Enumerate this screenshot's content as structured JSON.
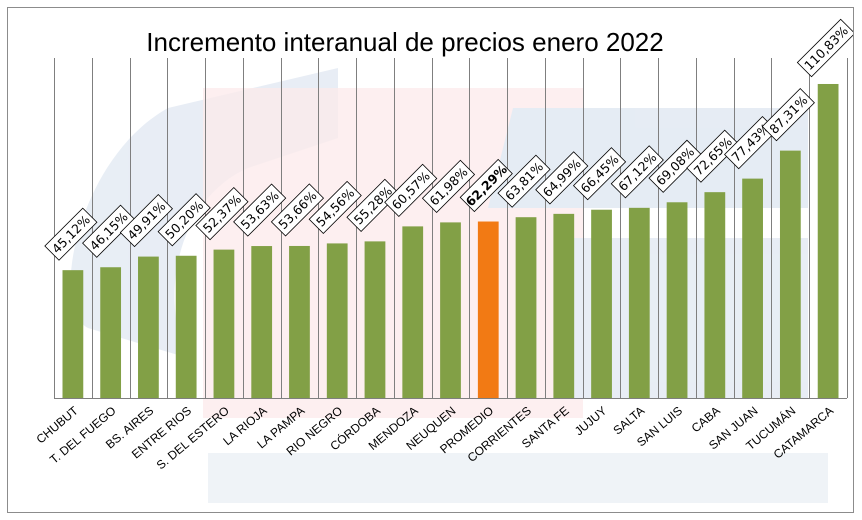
{
  "chart_data": {
    "type": "bar",
    "title": "Incremento interanual de precios enero 2022",
    "xlabel": "",
    "ylabel": "",
    "ylim": [
      0,
      120
    ],
    "grid": "vertical",
    "legend": "none",
    "categories": [
      "CHUBUT",
      "T. DEL FUEGO",
      "BS. AIRES",
      "ENTRE RIOS",
      "S. DEL ESTERO",
      "LA RIOJA",
      "LA PAMPA",
      "RIO NEGRO",
      "CÓRDOBA",
      "MENDOZA",
      "NEUQUEN",
      "PROMEDIO",
      "CORRIENTES",
      "SANTA FE",
      "JUJUY",
      "SALTA",
      "SAN LUIS",
      "CABA",
      "SAN JUAN",
      "TUCUMÁN",
      "CATAMARCA"
    ],
    "values": [
      45.12,
      46.15,
      49.91,
      50.2,
      52.37,
      53.63,
      53.66,
      54.56,
      55.28,
      60.57,
      61.98,
      62.29,
      63.81,
      64.99,
      66.45,
      67.12,
      69.08,
      72.65,
      77.43,
      87.31,
      110.83
    ],
    "data_labels": [
      "45,12%",
      "46,15%",
      "49,91%",
      "50,20%",
      "52,37%",
      "53,63%",
      "53,66%",
      "54,56%",
      "55,28%",
      "60,57%",
      "61,98%",
      "62,29%",
      "63,81%",
      "64,99%",
      "66,45%",
      "67,12%",
      "69,08%",
      "72,65%",
      "77,43%",
      "87,31%",
      "110,83%"
    ],
    "highlight_category": "PROMEDIO",
    "colors": {
      "bar": "#82a046",
      "highlight": "#f27a14",
      "grid": "#7f7f7f"
    }
  }
}
